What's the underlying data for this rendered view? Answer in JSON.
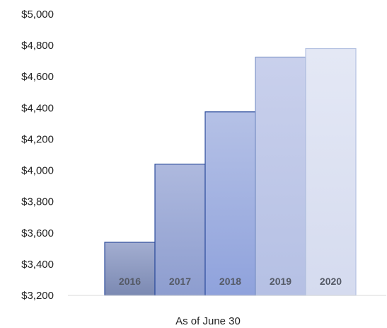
{
  "chart_data": {
    "type": "bar",
    "title": "",
    "xlabel": "As of June 30",
    "ylabel": "",
    "categories": [
      "2016",
      "2017",
      "2018",
      "2019",
      "2020"
    ],
    "values": [
      3540,
      4040,
      4375,
      4725,
      4780
    ],
    "ylim": [
      3200,
      5000
    ],
    "yticks": [
      3200,
      3400,
      3600,
      3800,
      4000,
      4200,
      4400,
      4600,
      4800,
      5000
    ],
    "ytick_labels": [
      "$3,200",
      "$3,400",
      "$3,600",
      "$3,800",
      "$4,000",
      "$4,200",
      "$4,400",
      "$4,600",
      "$4,800",
      "$5,000"
    ],
    "grid": false,
    "legend": "none",
    "colors": {
      "fills": [
        "#8996bb",
        "#97a6d4",
        "#a5b4e2",
        "#c3cbe8",
        "#dfe4f3"
      ],
      "strokes": [
        "#2e4d9c",
        "#2e4d9c",
        "#2e4d9c",
        "#7f95c8",
        "#b5c2e2"
      ],
      "label_text": "#555a66",
      "axis": "#d9d9d9"
    }
  }
}
